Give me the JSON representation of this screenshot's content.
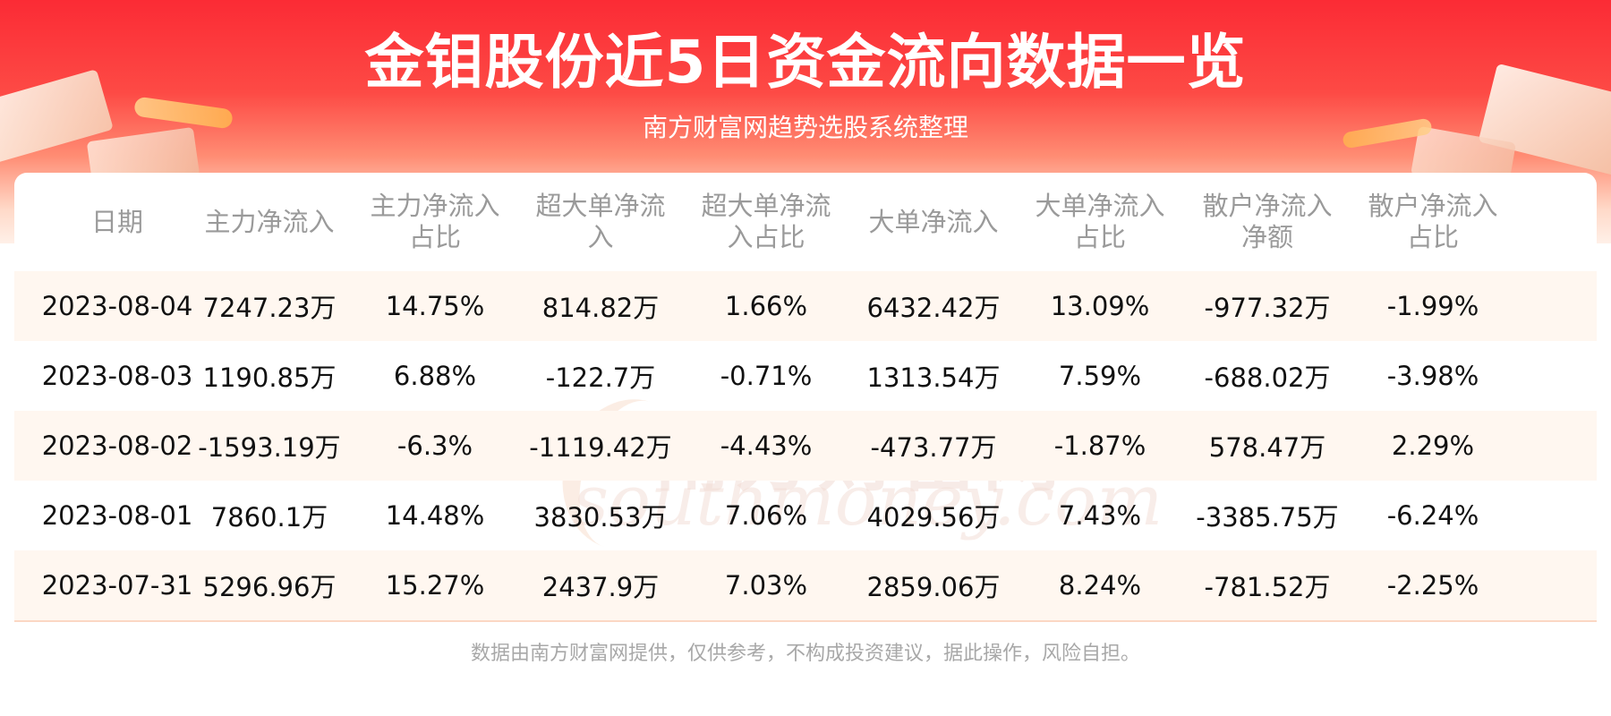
{
  "header": {
    "title": "金钼股份近5日资金流向数据一览",
    "subtitle": "南方财富网趋势选股系统整理"
  },
  "table": {
    "columns": [
      "日期",
      "主力净流入",
      "主力净流入占比",
      "超大单净流入",
      "超大单净流入占比",
      "大单净流入",
      "大单净流入占比",
      "散户净流入净额",
      "散户净流入占比"
    ],
    "rows": [
      [
        "2023-08-04",
        "7247.23万",
        "14.75%",
        "814.82万",
        "1.66%",
        "6432.42万",
        "13.09%",
        "-977.32万",
        "-1.99%"
      ],
      [
        "2023-08-03",
        "1190.85万",
        "6.88%",
        "-122.7万",
        "-0.71%",
        "1313.54万",
        "7.59%",
        "-688.02万",
        "-3.98%"
      ],
      [
        "2023-08-02",
        "-1593.19万",
        "-6.3%",
        "-1119.42万",
        "-4.43%",
        "-473.77万",
        "-1.87%",
        "578.47万",
        "2.29%"
      ],
      [
        "2023-08-01",
        "7860.1万",
        "14.48%",
        "3830.53万",
        "7.06%",
        "4029.56万",
        "7.43%",
        "-3385.75万",
        "-6.24%"
      ],
      [
        "2023-07-31",
        "5296.96万",
        "15.27%",
        "2437.9万",
        "7.03%",
        "2859.06万",
        "8.24%",
        "-781.52万",
        "-2.25%"
      ]
    ]
  },
  "watermark": {
    "text_cn": "南方财富网",
    "text_en": "southmoney.com"
  },
  "footer": {
    "disclaimer": "数据由南方财富网提供，仅供参考，不构成投资建议，据此操作，风险自担。"
  },
  "colors": {
    "banner_red": "#fb2b35",
    "alt_row": "#fff7f0",
    "header_text": "#9a9a9a"
  }
}
